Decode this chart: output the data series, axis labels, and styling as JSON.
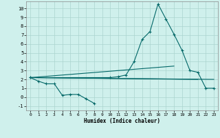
{
  "xlabel": "Humidex (Indice chaleur)",
  "bg_color": "#cff0ec",
  "grid_color": "#aad4ce",
  "line_color": "#006666",
  "xlim": [
    -0.5,
    23.5
  ],
  "ylim": [
    -1.5,
    10.8
  ],
  "xticks": [
    0,
    1,
    2,
    3,
    4,
    5,
    6,
    7,
    8,
    9,
    10,
    11,
    12,
    13,
    14,
    15,
    16,
    17,
    18,
    19,
    20,
    21,
    22,
    23
  ],
  "yticks": [
    -1,
    0,
    1,
    2,
    3,
    4,
    5,
    6,
    7,
    8,
    9,
    10
  ],
  "line1_x": [
    0,
    1,
    2,
    3,
    4,
    5,
    6,
    7,
    8
  ],
  "line1_y": [
    2.2,
    1.8,
    1.5,
    1.5,
    0.2,
    0.3,
    0.3,
    -0.2,
    -0.7
  ],
  "line2_x": [
    0,
    21
  ],
  "line2_y": [
    2.2,
    2.0
  ],
  "line3_x": [
    0,
    23
  ],
  "line3_y": [
    2.2,
    2.0
  ],
  "line4_x": [
    0,
    18
  ],
  "line4_y": [
    2.2,
    3.5
  ],
  "line5_x": [
    0,
    10,
    11,
    12,
    13,
    14,
    15,
    16,
    17,
    18,
    19,
    20,
    21,
    22,
    23
  ],
  "line5_y": [
    2.2,
    2.2,
    2.3,
    2.5,
    4.0,
    6.5,
    7.4,
    10.5,
    8.8,
    7.1,
    5.3,
    3.0,
    2.8,
    1.0,
    1.0
  ]
}
